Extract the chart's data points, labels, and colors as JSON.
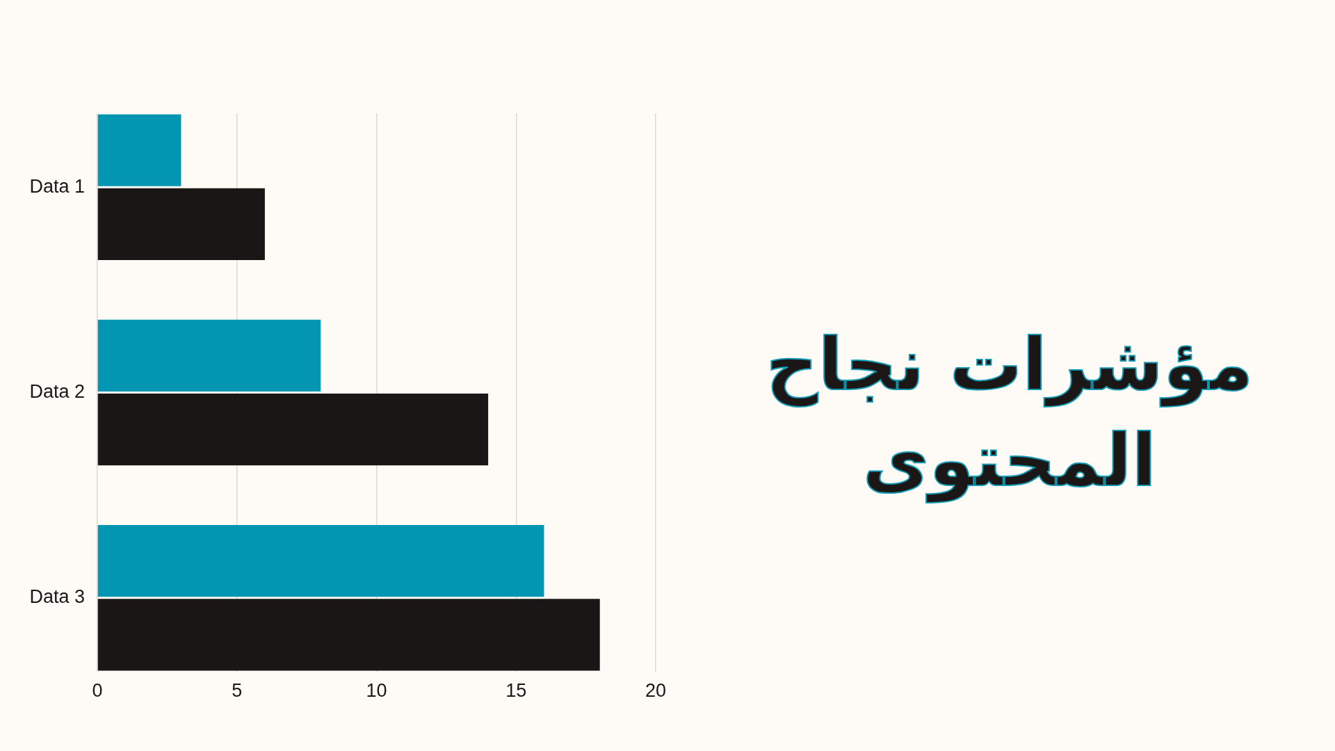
{
  "chart_data": {
    "type": "bar",
    "orientation": "horizontal",
    "title": "مؤشرات نجاح المحتوى",
    "categories": [
      "Data 1",
      "Data 2",
      "Data 3"
    ],
    "series": [
      {
        "color": "#0396b3",
        "values": [
          3,
          8,
          16
        ]
      },
      {
        "color": "#1a1615",
        "values": [
          6,
          14,
          18
        ]
      }
    ],
    "xlim": [
      0,
      20
    ],
    "xticks": [
      0,
      5,
      10,
      15,
      20
    ],
    "grid": "x",
    "legend": false
  }
}
